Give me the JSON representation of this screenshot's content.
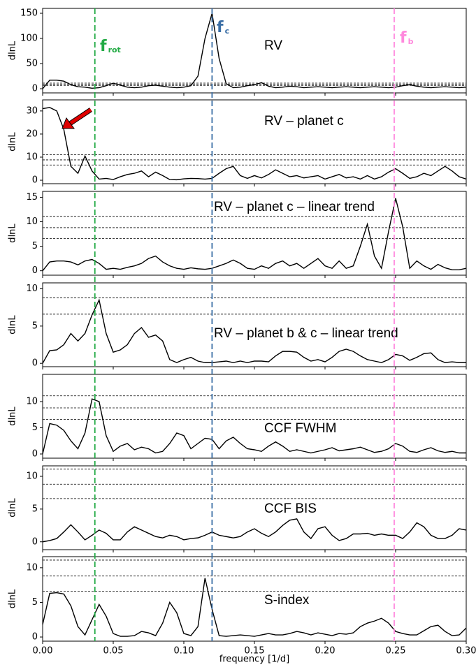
{
  "chart_data": [
    {
      "type": "line",
      "label": "RV",
      "ylabel": "dlnL",
      "ylim": [
        -8.3,
        159.7
      ],
      "yticks": [
        0,
        50,
        100,
        150
      ],
      "hlines": [
        6.6,
        8.8,
        11.1
      ],
      "color": "#000000",
      "vlines": [
        {
          "value": 0.037,
          "color": "#22aa44",
          "label": "f",
          "sub": "rot"
        },
        {
          "value": 0.12,
          "color": "#3a6ea5",
          "label": "f",
          "sub": "c"
        },
        {
          "value": 0.249,
          "color": "#ff88dd",
          "label": "f",
          "sub": "b"
        }
      ],
      "x": [
        0,
        0.005,
        0.01,
        0.015,
        0.02,
        0.025,
        0.03,
        0.035,
        0.04,
        0.045,
        0.05,
        0.055,
        0.06,
        0.065,
        0.07,
        0.075,
        0.08,
        0.085,
        0.09,
        0.095,
        0.1,
        0.105,
        0.11,
        0.115,
        0.12,
        0.125,
        0.13,
        0.135,
        0.14,
        0.145,
        0.15,
        0.155,
        0.16,
        0.165,
        0.17,
        0.175,
        0.18,
        0.185,
        0.19,
        0.195,
        0.2,
        0.205,
        0.21,
        0.215,
        0.22,
        0.225,
        0.23,
        0.235,
        0.24,
        0.245,
        0.25,
        0.255,
        0.26,
        0.265,
        0.27,
        0.275,
        0.28,
        0.285,
        0.29,
        0.295,
        0.3
      ],
      "values": [
        0,
        17,
        17,
        15,
        8,
        4,
        3,
        1,
        2,
        6,
        11,
        7,
        3,
        2,
        3,
        6,
        7,
        5,
        3,
        2,
        3,
        6,
        25,
        100,
        150,
        60,
        10,
        2,
        3,
        6,
        8,
        12,
        5,
        2,
        3,
        5,
        4,
        2,
        3,
        4,
        3,
        2,
        3,
        4,
        3,
        2,
        3,
        4,
        3,
        2,
        3,
        6,
        8,
        5,
        3,
        2,
        3,
        4,
        3,
        2,
        3
      ]
    },
    {
      "type": "line",
      "label": "RV – planet c",
      "ylabel": "dlnL",
      "ylim": [
        -1.5,
        34.8
      ],
      "yticks": [
        0,
        10,
        20,
        30
      ],
      "hlines": [
        6.6,
        8.8,
        11.1
      ],
      "color": "#000000",
      "x": [
        0,
        0.005,
        0.01,
        0.015,
        0.02,
        0.025,
        0.03,
        0.035,
        0.04,
        0.045,
        0.05,
        0.055,
        0.06,
        0.065,
        0.07,
        0.075,
        0.08,
        0.085,
        0.09,
        0.095,
        0.1,
        0.105,
        0.11,
        0.115,
        0.12,
        0.125,
        0.13,
        0.135,
        0.14,
        0.145,
        0.15,
        0.155,
        0.16,
        0.165,
        0.17,
        0.175,
        0.18,
        0.185,
        0.19,
        0.195,
        0.2,
        0.205,
        0.21,
        0.215,
        0.22,
        0.225,
        0.23,
        0.235,
        0.24,
        0.245,
        0.25,
        0.255,
        0.26,
        0.265,
        0.27,
        0.275,
        0.28,
        0.285,
        0.29,
        0.295,
        0.3
      ],
      "values": [
        31,
        31.5,
        30,
        22,
        6,
        3,
        10.5,
        4,
        0.5,
        0.8,
        0.3,
        1.5,
        2.5,
        3,
        4,
        1.5,
        3.5,
        2,
        0.3,
        0.2,
        0.6,
        0.8,
        0.7,
        0.5,
        0.8,
        3,
        5,
        6,
        2,
        0.8,
        2,
        1,
        2.5,
        4.5,
        3,
        1.5,
        2,
        1,
        1.5,
        2,
        0.5,
        1.5,
        2.5,
        1,
        1.5,
        0.5,
        2,
        0.5,
        1.5,
        3.5,
        5,
        3,
        0.8,
        1.5,
        3,
        2,
        4,
        6,
        4,
        1.5,
        0.5
      ]
    },
    {
      "type": "line",
      "label": "RV – planet c – linear trend",
      "ylabel": "dlnL",
      "ylim": [
        -0.9,
        16.2
      ],
      "yticks": [
        0,
        5,
        10,
        15
      ],
      "hlines": [
        6.6,
        8.8,
        11.1
      ],
      "color": "#000000",
      "x": [
        0,
        0.005,
        0.01,
        0.015,
        0.02,
        0.025,
        0.03,
        0.035,
        0.04,
        0.045,
        0.05,
        0.055,
        0.06,
        0.065,
        0.07,
        0.075,
        0.08,
        0.085,
        0.09,
        0.095,
        0.1,
        0.105,
        0.11,
        0.115,
        0.12,
        0.125,
        0.13,
        0.135,
        0.14,
        0.145,
        0.15,
        0.155,
        0.16,
        0.165,
        0.17,
        0.175,
        0.18,
        0.185,
        0.19,
        0.195,
        0.2,
        0.205,
        0.21,
        0.215,
        0.22,
        0.225,
        0.23,
        0.235,
        0.24,
        0.245,
        0.25,
        0.255,
        0.26,
        0.265,
        0.27,
        0.275,
        0.28,
        0.285,
        0.29,
        0.295,
        0.3
      ],
      "values": [
        0,
        1.8,
        2,
        2,
        1.8,
        1.2,
        2,
        2.3,
        1.5,
        0.3,
        0.5,
        0.3,
        0.7,
        1,
        1.5,
        2.5,
        3,
        1.8,
        1,
        0.5,
        0.3,
        0.6,
        0.4,
        0.3,
        0.5,
        1,
        1.5,
        2.2,
        1.5,
        0.5,
        0.3,
        1,
        0.5,
        1.5,
        2,
        1,
        1.5,
        0.5,
        1.5,
        2.5,
        1,
        0.5,
        2,
        0.5,
        1,
        5,
        9.5,
        3,
        0.5,
        8,
        14.8,
        9,
        0.5,
        2,
        1,
        0.3,
        1.3,
        0.6,
        0.2,
        0.2,
        0.5
      ]
    },
    {
      "type": "line",
      "label": "RV – planet b & c – linear trend",
      "ylabel": "dlnL",
      "ylim": [
        -0.45,
        10.8
      ],
      "yticks": [
        0,
        5,
        10
      ],
      "hlines": [
        6.6,
        8.8
      ],
      "color": "#000000",
      "x": [
        0,
        0.005,
        0.01,
        0.015,
        0.02,
        0.025,
        0.03,
        0.035,
        0.04,
        0.045,
        0.05,
        0.055,
        0.06,
        0.065,
        0.07,
        0.075,
        0.08,
        0.085,
        0.09,
        0.095,
        0.1,
        0.105,
        0.11,
        0.115,
        0.12,
        0.125,
        0.13,
        0.135,
        0.14,
        0.145,
        0.15,
        0.155,
        0.16,
        0.165,
        0.17,
        0.175,
        0.18,
        0.185,
        0.19,
        0.195,
        0.2,
        0.205,
        0.21,
        0.215,
        0.22,
        0.225,
        0.23,
        0.235,
        0.24,
        0.245,
        0.25,
        0.255,
        0.26,
        0.265,
        0.27,
        0.275,
        0.28,
        0.285,
        0.29,
        0.295,
        0.3
      ],
      "values": [
        0,
        1.7,
        1.8,
        2.5,
        4,
        3,
        4,
        6.5,
        8.5,
        4,
        1.5,
        1.8,
        2.5,
        4,
        4.8,
        3.5,
        3.8,
        3,
        0.5,
        0.1,
        0.5,
        0.8,
        0.3,
        0.1,
        0.1,
        0.2,
        0.3,
        0.1,
        0.3,
        0.1,
        0.3,
        0.3,
        0.2,
        1,
        1.6,
        1.6,
        1.5,
        0.8,
        0.3,
        0.5,
        0.2,
        0.8,
        1.6,
        1.9,
        1.6,
        1,
        0.5,
        0.3,
        0.1,
        0.5,
        1.2,
        1,
        0.4,
        0.8,
        1.3,
        1.4,
        0.5,
        0.1,
        0.2,
        0.1,
        0.1
      ]
    },
    {
      "type": "line",
      "label": "CCF FWHM",
      "ylabel": "dlnL",
      "ylim": [
        -0.8,
        15.2
      ],
      "yticks": [
        0,
        5,
        10
      ],
      "hlines": [
        6.6,
        8.8,
        11.1
      ],
      "color": "#000000",
      "x": [
        0,
        0.005,
        0.01,
        0.015,
        0.02,
        0.025,
        0.03,
        0.035,
        0.04,
        0.045,
        0.05,
        0.055,
        0.06,
        0.065,
        0.07,
        0.075,
        0.08,
        0.085,
        0.09,
        0.095,
        0.1,
        0.105,
        0.11,
        0.115,
        0.12,
        0.125,
        0.13,
        0.135,
        0.14,
        0.145,
        0.15,
        0.155,
        0.16,
        0.165,
        0.17,
        0.175,
        0.18,
        0.185,
        0.19,
        0.195,
        0.2,
        0.205,
        0.21,
        0.215,
        0.22,
        0.225,
        0.23,
        0.235,
        0.24,
        0.245,
        0.25,
        0.255,
        0.26,
        0.265,
        0.27,
        0.275,
        0.28,
        0.285,
        0.29,
        0.295,
        0.3
      ],
      "values": [
        0,
        5.8,
        5.5,
        4.5,
        2.5,
        1,
        4,
        10.5,
        10,
        3.5,
        0.5,
        1.5,
        2,
        0.8,
        1.3,
        1,
        0.2,
        0.5,
        2,
        4,
        3.5,
        1,
        2,
        3,
        2.8,
        1,
        2.5,
        3.2,
        2,
        1,
        0.8,
        0.5,
        1.5,
        2.3,
        1.5,
        0.5,
        0.8,
        0.5,
        0.2,
        0.5,
        0.8,
        1.2,
        0.6,
        0.8,
        1,
        1.3,
        0.8,
        0.3,
        0.5,
        1,
        2,
        1.5,
        0.5,
        0.3,
        0.8,
        1.2,
        0.6,
        0.3,
        0.5,
        0.2,
        0.2
      ]
    },
    {
      "type": "line",
      "label": "CCF BIS",
      "ylabel": "dlnL",
      "ylim": [
        -1.2,
        11.6
      ],
      "yticks": [
        0,
        5,
        10
      ],
      "hlines": [
        6.6,
        8.8,
        11.1
      ],
      "color": "#000000",
      "x": [
        0,
        0.005,
        0.01,
        0.015,
        0.02,
        0.025,
        0.03,
        0.035,
        0.04,
        0.045,
        0.05,
        0.055,
        0.06,
        0.065,
        0.07,
        0.075,
        0.08,
        0.085,
        0.09,
        0.095,
        0.1,
        0.105,
        0.11,
        0.115,
        0.12,
        0.125,
        0.13,
        0.135,
        0.14,
        0.145,
        0.15,
        0.155,
        0.16,
        0.165,
        0.17,
        0.175,
        0.18,
        0.185,
        0.19,
        0.195,
        0.2,
        0.205,
        0.21,
        0.215,
        0.22,
        0.225,
        0.23,
        0.235,
        0.24,
        0.245,
        0.25,
        0.255,
        0.26,
        0.265,
        0.27,
        0.275,
        0.28,
        0.285,
        0.29,
        0.295,
        0.3
      ],
      "values": [
        0,
        0.2,
        0.5,
        1.5,
        2.6,
        1.5,
        0.3,
        1,
        1.8,
        1.3,
        0.3,
        0.3,
        1.5,
        2.3,
        1.8,
        1.3,
        0.8,
        0.6,
        1,
        0.8,
        0.3,
        0.5,
        0.6,
        1,
        1.5,
        1,
        0.8,
        0.6,
        0.8,
        1.5,
        2,
        1.3,
        0.8,
        1.5,
        2.5,
        3.3,
        3.5,
        1.5,
        0.5,
        2,
        2.3,
        1,
        0.2,
        0.5,
        1.2,
        1.2,
        1.3,
        1,
        1.2,
        1,
        1,
        0.5,
        1.5,
        2.9,
        2.3,
        1,
        0.5,
        0.5,
        1,
        2,
        1.8
      ]
    },
    {
      "type": "line",
      "label": "S-index",
      "ylabel": "dlnL",
      "ylim": [
        -0.6,
        11.6
      ],
      "yticks": [
        0,
        5,
        10
      ],
      "hlines": [
        6.6,
        8.8,
        11.1
      ],
      "color": "#000000",
      "xlabel": "frequency [1/d]",
      "xlim": [
        0,
        0.3
      ],
      "xticks": [
        {
          "value": 0,
          "label": "0.00"
        },
        {
          "value": 0.05,
          "label": "0.05"
        },
        {
          "value": 0.1,
          "label": "0.10"
        },
        {
          "value": 0.15,
          "label": "0.15"
        },
        {
          "value": 0.2,
          "label": "0.20"
        },
        {
          "value": 0.25,
          "label": "0.25"
        },
        {
          "value": 0.3,
          "label": "0.30"
        }
      ],
      "x": [
        0,
        0.005,
        0.01,
        0.015,
        0.02,
        0.025,
        0.03,
        0.035,
        0.04,
        0.045,
        0.05,
        0.055,
        0.06,
        0.065,
        0.07,
        0.075,
        0.08,
        0.085,
        0.09,
        0.095,
        0.1,
        0.105,
        0.11,
        0.115,
        0.12,
        0.125,
        0.13,
        0.135,
        0.14,
        0.145,
        0.15,
        0.155,
        0.16,
        0.165,
        0.17,
        0.175,
        0.18,
        0.185,
        0.19,
        0.195,
        0.2,
        0.205,
        0.21,
        0.215,
        0.22,
        0.225,
        0.23,
        0.235,
        0.24,
        0.245,
        0.25,
        0.255,
        0.26,
        0.265,
        0.27,
        0.275,
        0.28,
        0.285,
        0.29,
        0.295,
        0.3
      ],
      "values": [
        1.8,
        6.3,
        6.4,
        6.2,
        4.5,
        1.5,
        0.3,
        2.5,
        4.7,
        3,
        0.5,
        0.1,
        0.1,
        0.2,
        0.8,
        0.6,
        0.2,
        2,
        5,
        3.5,
        0.5,
        0.2,
        1.5,
        8.5,
        4,
        0.2,
        0.1,
        0.2,
        0.3,
        0.2,
        0.1,
        0.3,
        0.5,
        0.3,
        0.3,
        0.5,
        0.8,
        0.6,
        0.3,
        0.6,
        0.4,
        0.2,
        0.5,
        0.4,
        0.6,
        1.5,
        2,
        2.3,
        2.7,
        2,
        0.8,
        0.5,
        0.3,
        0.3,
        0.9,
        1.5,
        1.7,
        0.8,
        0.2,
        0.3,
        1.3
      ]
    }
  ]
}
